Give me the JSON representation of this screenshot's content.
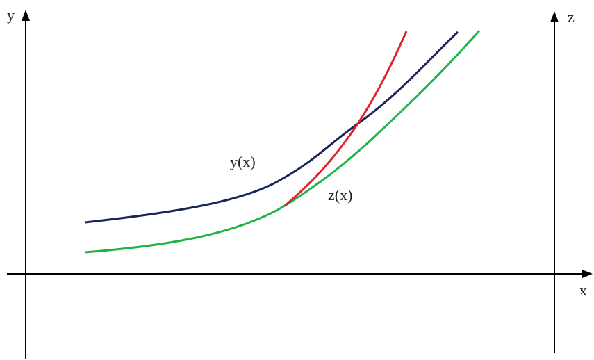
{
  "axes": {
    "y_label": "y",
    "z_label": "z",
    "x_label": "x"
  },
  "curves": {
    "y": {
      "label": "y(x)",
      "color": "#1a2456"
    },
    "z": {
      "label": "z(x)",
      "color": "#22b24c"
    },
    "tangent": {
      "color": "#e0222a"
    }
  },
  "colors": {
    "axis": "#000000",
    "background": "#ffffff"
  }
}
